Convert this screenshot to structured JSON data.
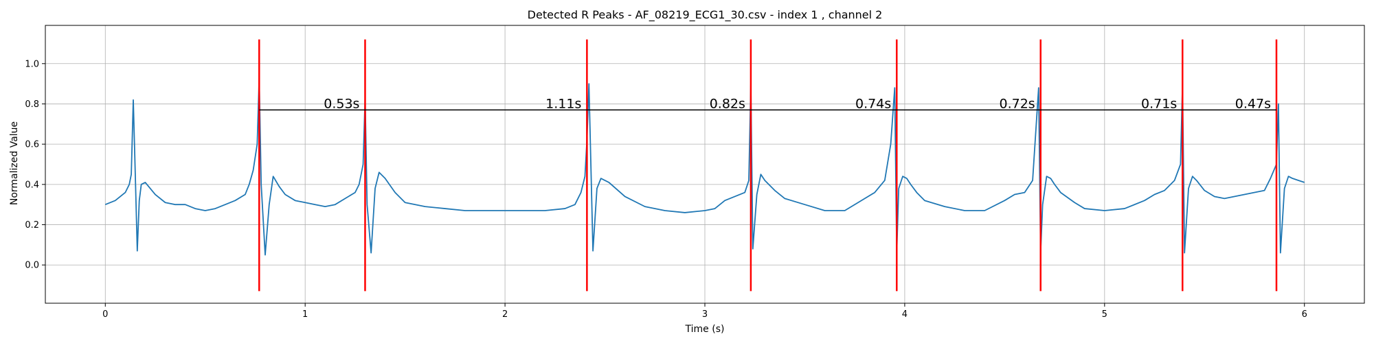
{
  "chart_data": {
    "type": "line",
    "title": "Detected R Peaks - AF_08219_ECG1_30.csv - index 1 , channel 2",
    "xlabel": "Time (s)",
    "ylabel": "Normalized Value",
    "xlim": [
      -0.3,
      6.3
    ],
    "ylim": [
      -0.19,
      1.19
    ],
    "xticks": [
      0,
      1,
      2,
      3,
      4,
      5,
      6
    ],
    "yticks": [
      0.0,
      0.2,
      0.4,
      0.6,
      0.8,
      1.0
    ],
    "xtick_labels": [
      "0",
      "1",
      "2",
      "3",
      "4",
      "5",
      "6"
    ],
    "ytick_labels": [
      "0.0",
      "0.2",
      "0.4",
      "0.6",
      "0.8",
      "1.0"
    ],
    "grid": true,
    "colors": {
      "signal": "#1f77b4",
      "peak_marker": "#ff0000",
      "interval_line": "#000000"
    },
    "series": [
      {
        "x": [
          0.0,
          0.05,
          0.1,
          0.12,
          0.13,
          0.14,
          0.15,
          0.16,
          0.17,
          0.18,
          0.2,
          0.25,
          0.3,
          0.35,
          0.4,
          0.45,
          0.5,
          0.55,
          0.6,
          0.65,
          0.7,
          0.72,
          0.74,
          0.76,
          0.77,
          0.78,
          0.8,
          0.82,
          0.84,
          0.87,
          0.9,
          0.95,
          1.0,
          1.05,
          1.1,
          1.15,
          1.2,
          1.25,
          1.27,
          1.29,
          1.3,
          1.31,
          1.33,
          1.35,
          1.37,
          1.4,
          1.45,
          1.5,
          1.6,
          1.7,
          1.8,
          2.0,
          2.2,
          2.3,
          2.35,
          2.38,
          2.4,
          2.41,
          2.42,
          2.44,
          2.46,
          2.48,
          2.52,
          2.6,
          2.7,
          2.8,
          2.9,
          3.0,
          3.05,
          3.1,
          3.15,
          3.2,
          3.22,
          3.23,
          3.24,
          3.26,
          3.28,
          3.3,
          3.35,
          3.4,
          3.5,
          3.6,
          3.7,
          3.8,
          3.85,
          3.9,
          3.93,
          3.95,
          3.96,
          3.97,
          3.99,
          4.01,
          4.03,
          4.06,
          4.1,
          4.2,
          4.3,
          4.4,
          4.5,
          4.55,
          4.6,
          4.64,
          4.67,
          4.68,
          4.69,
          4.71,
          4.73,
          4.75,
          4.78,
          4.85,
          4.9,
          5.0,
          5.1,
          5.2,
          5.25,
          5.3,
          5.35,
          5.38,
          5.39,
          5.4,
          5.42,
          5.44,
          5.46,
          5.5,
          5.55,
          5.6,
          5.7,
          5.8,
          5.83,
          5.86,
          5.87,
          5.88,
          5.9,
          5.92,
          5.94,
          5.97,
          6.0
        ],
        "y": [
          0.3,
          0.32,
          0.36,
          0.4,
          0.45,
          0.82,
          0.45,
          0.07,
          0.32,
          0.4,
          0.41,
          0.35,
          0.31,
          0.3,
          0.3,
          0.28,
          0.27,
          0.28,
          0.3,
          0.32,
          0.35,
          0.4,
          0.47,
          0.6,
          0.93,
          0.4,
          0.05,
          0.3,
          0.44,
          0.39,
          0.35,
          0.32,
          0.31,
          0.3,
          0.29,
          0.3,
          0.33,
          0.36,
          0.4,
          0.5,
          0.83,
          0.3,
          0.06,
          0.38,
          0.46,
          0.43,
          0.36,
          0.31,
          0.29,
          0.28,
          0.27,
          0.27,
          0.27,
          0.28,
          0.3,
          0.36,
          0.44,
          0.62,
          0.9,
          0.07,
          0.38,
          0.43,
          0.41,
          0.34,
          0.29,
          0.27,
          0.26,
          0.27,
          0.28,
          0.32,
          0.34,
          0.36,
          0.42,
          0.9,
          0.08,
          0.35,
          0.45,
          0.42,
          0.37,
          0.33,
          0.3,
          0.27,
          0.27,
          0.33,
          0.36,
          0.42,
          0.6,
          0.88,
          0.06,
          0.38,
          0.44,
          0.43,
          0.4,
          0.36,
          0.32,
          0.29,
          0.27,
          0.27,
          0.32,
          0.35,
          0.36,
          0.42,
          0.88,
          0.06,
          0.3,
          0.44,
          0.43,
          0.4,
          0.36,
          0.31,
          0.28,
          0.27,
          0.28,
          0.32,
          0.35,
          0.37,
          0.42,
          0.5,
          0.9,
          0.06,
          0.38,
          0.44,
          0.42,
          0.37,
          0.34,
          0.33,
          0.35,
          0.37,
          0.43,
          0.5,
          0.8,
          0.06,
          0.38,
          0.44,
          0.43,
          0.42,
          0.41
        ]
      }
    ],
    "r_peaks": [
      0.77,
      1.3,
      2.41,
      3.23,
      3.96,
      4.68,
      5.39,
      5.86
    ],
    "peak_line_range": [
      -0.13,
      1.12
    ],
    "interval_line_y": 0.77,
    "interval_label_y": 0.8,
    "rr_intervals": [
      {
        "label": "0.53s",
        "at": 1.3
      },
      {
        "label": "1.11s",
        "at": 2.41
      },
      {
        "label": "0.82s",
        "at": 3.23
      },
      {
        "label": "0.74s",
        "at": 3.96
      },
      {
        "label": "0.72s",
        "at": 4.68
      },
      {
        "label": "0.71s",
        "at": 5.39
      },
      {
        "label": "0.47s",
        "at": 5.86
      }
    ]
  }
}
